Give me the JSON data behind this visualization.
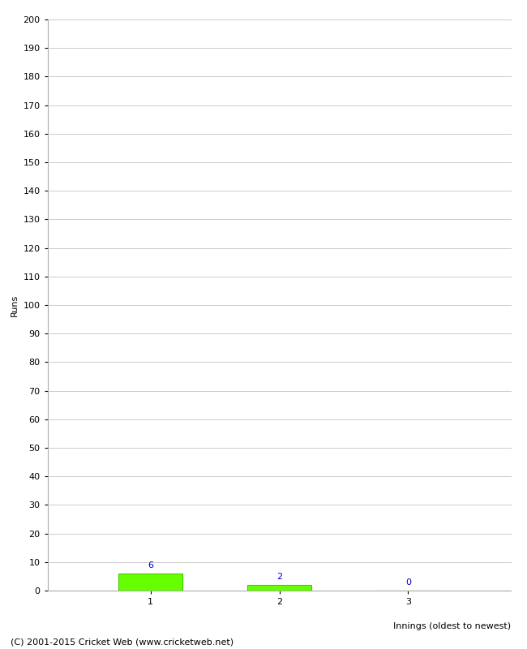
{
  "categories": [
    1,
    2,
    3
  ],
  "values": [
    6,
    2,
    0
  ],
  "bar_color": "#66ff00",
  "bar_edge_color": "#44cc00",
  "ylabel": "Runs",
  "xlabel": "Innings (oldest to newest)",
  "ylim": [
    0,
    200
  ],
  "yticks": [
    0,
    10,
    20,
    30,
    40,
    50,
    60,
    70,
    80,
    90,
    100,
    110,
    120,
    130,
    140,
    150,
    160,
    170,
    180,
    190,
    200
  ],
  "annotation_color": "#0000cc",
  "annotation_fontsize": 8,
  "footer": "(C) 2001-2015 Cricket Web (www.cricketweb.net)",
  "footer_fontsize": 8,
  "background_color": "#ffffff",
  "grid_color": "#cccccc",
  "tick_label_fontsize": 8,
  "axis_label_fontsize": 8,
  "bar_width": 0.5,
  "xlim": [
    0.2,
    3.8
  ]
}
